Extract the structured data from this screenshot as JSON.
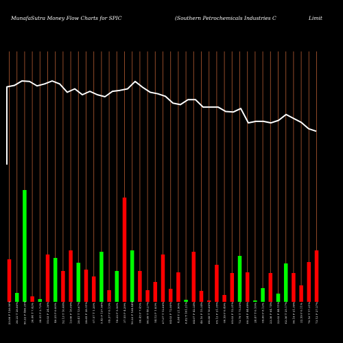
{
  "header": {
    "brand": "MunafaSutra  Money Flow  Charts for SPIC",
    "company": "(Southern  Petrochemicals Industries C",
    "suffix": "Limit"
  },
  "chart_data": {
    "type": "bar",
    "price_line": [
      125.5,
      127.0,
      131.5,
      131.0,
      126.5,
      128.5,
      131.5,
      128.5,
      120.0,
      123.5,
      117.5,
      121.0,
      117.5,
      115.5,
      121.0,
      122.0,
      123.5,
      131.0,
      125.0,
      120.0,
      118.5,
      116.0,
      109.0,
      107.5,
      112.5,
      112.5,
      105.0,
      105.0,
      105.0,
      100.5,
      100.0,
      103.5,
      89.0,
      90.5,
      90.5,
      89.0,
      91.5,
      97.5,
      93.5,
      89.5,
      83.0,
      80.5
    ],
    "series": [
      {
        "colors": [
          "red",
          "green",
          "green",
          "red",
          "green",
          "red",
          "green",
          "red",
          "red",
          "green",
          "red",
          "red",
          "green",
          "red",
          "green",
          "red",
          "green",
          "red",
          "red",
          "red",
          "red",
          "red",
          "red",
          "green",
          "red",
          "red",
          "red",
          "red",
          "red",
          "red",
          "green",
          "red",
          "green",
          "green",
          "red",
          "green",
          "green",
          "red",
          "red",
          "red",
          "red"
        ],
        "values": [
          62,
          13,
          163,
          8,
          4,
          69,
          64,
          45,
          75,
          57,
          47,
          37,
          73,
          17,
          45,
          152,
          75,
          45,
          17,
          29,
          69,
          19,
          43,
          3,
          73,
          16,
          2,
          54,
          10,
          42,
          67,
          43,
          2,
          20,
          42,
          12,
          56,
          42,
          24,
          58,
          75
        ]
      }
    ],
    "x": [
      "23.08 P 126.00%",
      "30.22 T 28.80%",
      "50.22 P 496.25%",
      "30.44 T 7.42%",
      "30.51 P 2.72%",
      "55.03 P 24.36%",
      "40.25 P 0.00%",
      "52.13 T 10.44%",
      "13.06 P 18.69%",
      "20.41 T 13.67%",
      "28.65 P 38.51%",
      "07.57 T 1.38%",
      "5.43 P 137.96%",
      "09.37 P 0.13%",
      "18.22 P 5.56%",
      "37.55 P 4.29%",
      "10.23 P 164.44%",
      "00.45 P 7.45%",
      "90.99 T 48.27%",
      "54.12 P 1.83%",
      "07.07 T 12.06%",
      "84.03 P 72.80%",
      "4.84 T 21.90%",
      "6.82 T 101.21%",
      "84.07 P 42.24%",
      "40.10 P 15.34%",
      "60.68 T 10.60%",
      "65.12 P 21.35%",
      "00.59 P 0.49%",
      "85.03 P 12.31%",
      "73.79 T 75.50%",
      "00.24 P 44.69%",
      "28.87 T 0.10%",
      "09.60 P 8.12%",
      "23.36 P 64.74%",
      "22.02 P 44.11%",
      "02.36 T 25.17%",
      "50.19 P 21.39%",
      "22.59 P 0.11%",
      "70.16 T 17.31%",
      "73.12 P 27.27%"
    ],
    "title": "",
    "xlabel": "",
    "ylabel": "",
    "grid": true,
    "colors": {
      "up": "#00ff00",
      "down": "#ff0000",
      "line": "#ffffff",
      "grid": "#a0522d",
      "background": "#000000"
    }
  }
}
